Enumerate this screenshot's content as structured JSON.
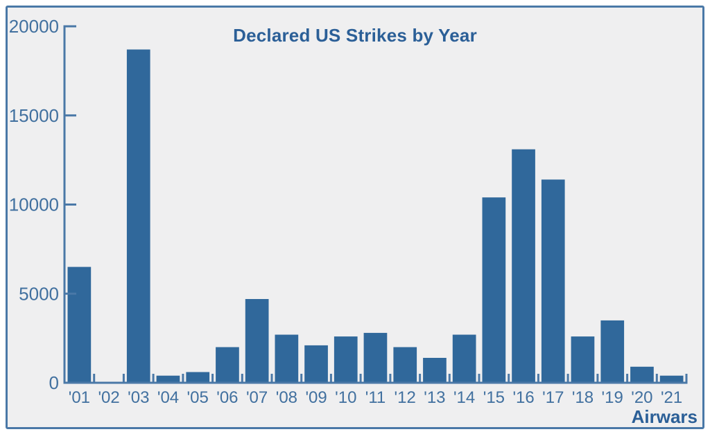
{
  "title": "Declared US Strikes by Year",
  "attribution": "Airwars",
  "chart_data": {
    "type": "bar",
    "title": "Declared US Strikes by Year",
    "categories": [
      "'01",
      "'02",
      "'03",
      "'04",
      "'05",
      "'06",
      "'07",
      "'08",
      "'09",
      "'10",
      "'11",
      "'12",
      "'13",
      "'14",
      "'15",
      "'16",
      "'17",
      "'18",
      "'19",
      "'20",
      "'21"
    ],
    "values": [
      6500,
      0,
      18700,
      400,
      600,
      2000,
      4700,
      2700,
      2100,
      2600,
      2800,
      2000,
      1400,
      2700,
      10400,
      13100,
      11400,
      2600,
      3500,
      900,
      400
    ],
    "xlabel": "",
    "ylabel": "",
    "ylim": [
      0,
      20000
    ],
    "yticks": [
      0,
      5000,
      10000,
      15000,
      20000
    ],
    "grid": false,
    "legend": null,
    "attribution": "Airwars",
    "colors": {
      "bar": "#30689b",
      "axis": "#4a78a7",
      "tick_label": "#41709f",
      "title": "#2b5f97",
      "frame_border": "#4a78a7",
      "plot_background": "#efeff0",
      "page_background": "#ffffff"
    }
  }
}
